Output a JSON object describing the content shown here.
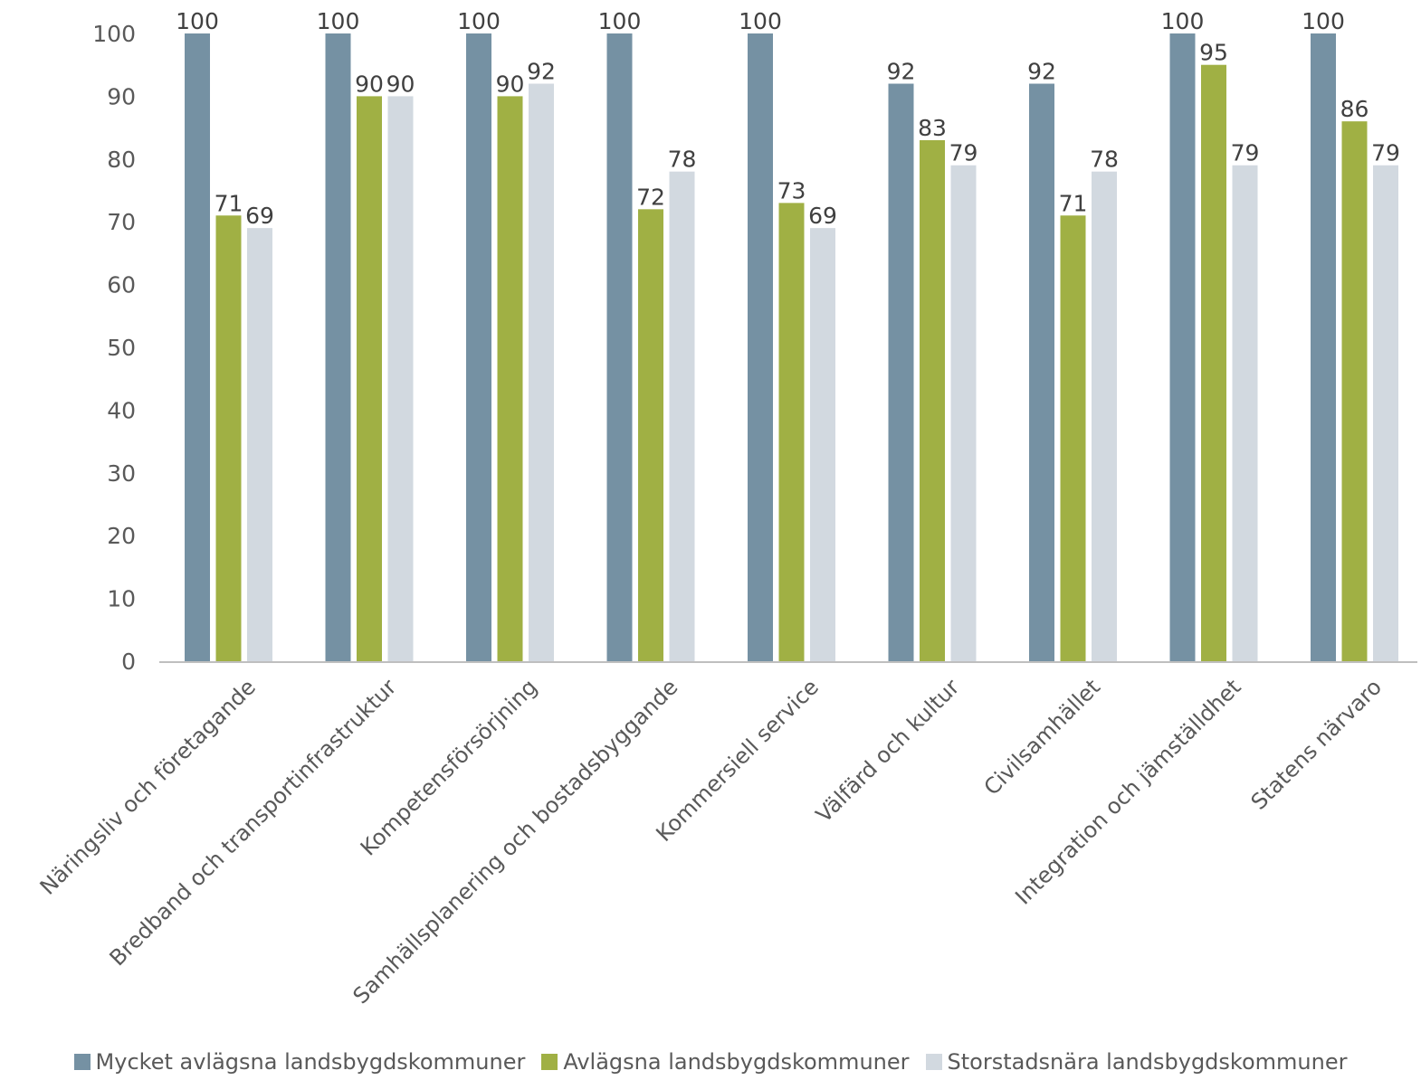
{
  "chart_data": {
    "type": "bar",
    "categories": [
      "Näringsliv och företagande",
      "Bredband och transportinfrastruktur",
      "Kompetensförsörjning",
      "Samhällsplanering och bostadsbyggande",
      "Kommersiell service",
      "Välfärd och kultur",
      "Civilsamhället",
      "Integration och jämställdhet",
      "Statens närvaro"
    ],
    "series": [
      {
        "name": "Mycket avlägsna landsbygdskommuner",
        "color": "#7591a3",
        "values": [
          100,
          100,
          100,
          100,
          100,
          92,
          92,
          100,
          100
        ]
      },
      {
        "name": "Avlägsna landsbygdskommuner",
        "color": "#a0b044",
        "values": [
          71,
          90,
          90,
          72,
          73,
          83,
          71,
          95,
          86
        ]
      },
      {
        "name": "Storstadsnära landsbygdskommuner",
        "color": "#d2d9e0",
        "values": [
          69,
          90,
          92,
          78,
          69,
          79,
          78,
          79,
          79
        ]
      }
    ],
    "ylim": [
      0,
      100
    ],
    "yticks": [
      0,
      10,
      20,
      30,
      40,
      50,
      60,
      70,
      80,
      90,
      100
    ],
    "grid": false,
    "legend_position": "bottom"
  }
}
